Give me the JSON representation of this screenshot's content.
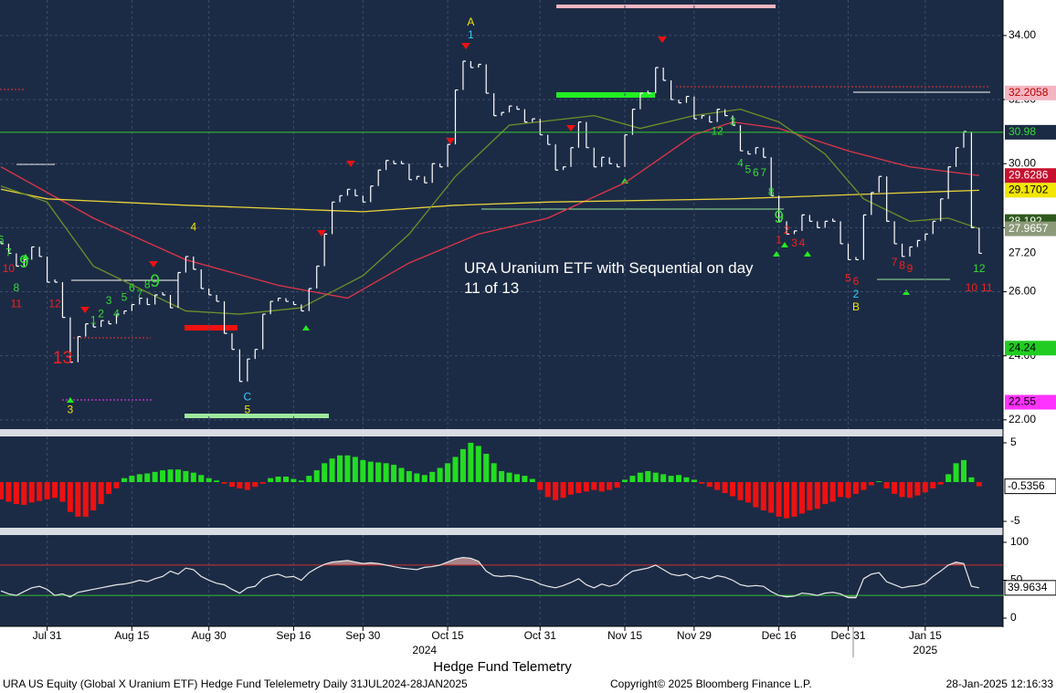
{
  "chart_data": [
    {
      "type": "ohlc",
      "title": "Hedge Fund Telemetry",
      "annotation": "URA Uranium ETF with Sequential on day 11 of 13",
      "color": "#ffffff",
      "close": [
        27.5,
        27.2,
        26.8,
        27.0,
        27.4,
        27.1,
        26.3,
        26.3,
        25.2,
        23.8,
        24.6,
        25.0,
        24.9,
        25.1,
        25.0,
        25.3,
        25.4,
        25.6,
        25.8,
        25.6,
        25.9,
        25.9,
        25.5,
        26.6,
        27.1,
        26.7,
        26.1,
        25.9,
        25.7,
        24.7,
        24.2,
        23.2,
        23.9,
        24.2,
        25.3,
        25.7,
        25.8,
        25.7,
        25.6,
        25.4,
        26.1,
        26.8,
        27.8,
        28.8,
        29.0,
        29.2,
        29.0,
        28.8,
        29.3,
        29.8,
        30.1,
        30.0,
        30.0,
        29.5,
        29.6,
        29.4,
        30.0,
        29.9,
        30.6,
        32.3,
        33.2,
        33.0,
        33.1,
        32.2,
        31.5,
        31.6,
        31.8,
        31.7,
        31.3,
        31.4,
        30.9,
        30.6,
        29.8,
        29.9,
        30.5,
        31.3,
        30.5,
        29.9,
        30.2,
        30.0,
        29.9,
        30.9,
        31.7,
        32.2,
        32.2,
        33.0,
        32.6,
        32.0,
        31.9,
        32.1,
        31.4,
        31.5,
        31.3,
        31.7,
        31.5,
        31.2,
        30.4,
        30.3,
        30.5,
        30.2,
        29.0,
        28.2,
        27.8,
        27.9,
        28.4,
        28.2,
        28.0,
        28.2,
        28.2,
        27.5,
        27.0,
        27.0,
        28.4,
        29.1,
        29.6,
        28.2,
        27.5,
        27.1,
        27.4,
        27.6,
        27.8,
        28.2,
        28.9,
        29.9,
        30.5,
        31.0,
        28.0,
        27.2
      ],
      "xlim": [
        -0.12,
        130.1
      ],
      "ylim": [
        21.71,
        35.11
      ],
      "yticks": [
        {
          "value": 22,
          "label": "22.00"
        },
        {
          "value": 24,
          "label": "24.00"
        },
        {
          "value": 26,
          "label": "26.00"
        },
        {
          "value": 28,
          "label": "28.00"
        },
        {
          "value": 30,
          "label": "30.00"
        },
        {
          "value": 32,
          "label": "32.00"
        },
        {
          "value": 34,
          "label": "34.00"
        }
      ],
      "xticks": [
        {
          "value": 6,
          "label": "Jul 31"
        },
        {
          "value": 17,
          "label": "Aug 15"
        },
        {
          "value": 27,
          "label": "Aug 30"
        },
        {
          "value": 38,
          "label": "Sep 16"
        },
        {
          "value": 47,
          "label": "Sep 30"
        },
        {
          "value": 58,
          "label": "Oct 15"
        },
        {
          "value": 70,
          "label": "Oct 31"
        },
        {
          "value": 81,
          "label": "Nov 15"
        },
        {
          "value": 90,
          "label": "Nov 29"
        },
        {
          "value": 101,
          "label": "Dec 16"
        },
        {
          "value": 110,
          "label": "Dec 31"
        },
        {
          "value": 120,
          "label": "Jan 15"
        }
      ],
      "years": [
        {
          "value": 55,
          "label": "2024"
        },
        {
          "value": 120,
          "label": "2025"
        }
      ],
      "grid": true,
      "moving_averages": [
        {
          "color": "#e0354a",
          "x": [
            0,
            12,
            24,
            36,
            45,
            53,
            62,
            71,
            81,
            90,
            95,
            101,
            110,
            118,
            127
          ],
          "values": [
            29.9,
            28.3,
            27.0,
            26.2,
            25.8,
            26.9,
            27.8,
            28.3,
            29.4,
            30.9,
            31.3,
            31.1,
            30.4,
            29.9,
            29.63
          ]
        },
        {
          "color": "#e8d23a",
          "x": [
            0,
            6,
            24,
            47,
            59,
            71,
            95,
            127
          ],
          "values": [
            29.2,
            28.9,
            28.7,
            28.5,
            28.7,
            28.8,
            28.9,
            29.17
          ]
        },
        {
          "color": "#6f8f2a",
          "x": [
            0,
            6,
            12,
            24,
            31,
            39,
            47,
            53,
            59,
            66,
            77,
            83,
            90,
            96,
            101,
            107,
            112,
            118,
            123,
            127
          ],
          "values": [
            29.3,
            28.8,
            26.8,
            25.4,
            25.3,
            25.5,
            26.5,
            27.8,
            29.6,
            31.2,
            31.5,
            31.1,
            31.5,
            31.7,
            31.3,
            30.3,
            28.9,
            28.2,
            28.3,
            27.97
          ]
        }
      ],
      "tags": [
        {
          "value": 32.2058,
          "color": "#f4b6c2",
          "text_color": "#c00000"
        },
        {
          "value": 30.98,
          "color": "#1c2b45",
          "text_color": "#33dd33",
          "line": true
        },
        {
          "value": 29.6286,
          "color": "#c8102e",
          "text_color": "#ffffff"
        },
        {
          "value": 29.1702,
          "color": "#f2e600",
          "text_color": "#000000"
        },
        {
          "value": 28.192,
          "color": "#2f5a1e",
          "text_color": "#ffffff"
        },
        {
          "value": 27.9657,
          "color": "#8c9a7a",
          "text_color": "#ffffff"
        },
        {
          "value": 27.2,
          "label": "27.20",
          "color": "#ffffff",
          "text_color": "#000000"
        },
        {
          "value": 24.24,
          "color": "#22cc22",
          "text_color": "#000000"
        },
        {
          "value": 22.55,
          "color": "#ff33ff",
          "text_color": "#000000"
        }
      ],
      "counts": [
        {
          "text": "6",
          "i": 0,
          "y": 27.6,
          "color": "#33dd33"
        },
        {
          "text": "7",
          "i": 1,
          "y": 27.2,
          "color": "#33dd33"
        },
        {
          "text": "9",
          "i": 3,
          "y": 26.9,
          "color": "#33dd33",
          "big": true
        },
        {
          "text": "8",
          "i": 2,
          "y": 26.1,
          "color": "#33dd33"
        },
        {
          "text": "10",
          "i": 1,
          "y": 26.7,
          "color": "#ee2222"
        },
        {
          "text": "11",
          "i": 2,
          "y": 25.6,
          "color": "#ee2222"
        },
        {
          "text": "12",
          "i": 7,
          "y": 25.6,
          "color": "#ee2222"
        },
        {
          "text": "13",
          "i": 8,
          "y": 23.9,
          "color": "#ee2222",
          "big": true
        },
        {
          "text": "3",
          "i": 9,
          "y": 22.3,
          "color": "#f2e600"
        },
        {
          "text": "1",
          "i": 12,
          "y": 25.1,
          "color": "#33dd33"
        },
        {
          "text": "2",
          "i": 13,
          "y": 25.3,
          "color": "#33dd33"
        },
        {
          "text": "3",
          "i": 14,
          "y": 25.7,
          "color": "#33dd33"
        },
        {
          "text": "4",
          "i": 15,
          "y": 25.3,
          "color": "#33dd33"
        },
        {
          "text": "5",
          "i": 16,
          "y": 25.8,
          "color": "#33dd33"
        },
        {
          "text": "6",
          "i": 17,
          "y": 26.1,
          "color": "#33dd33"
        },
        {
          "text": "7",
          "i": 18,
          "y": 25.9,
          "color": "#33dd33"
        },
        {
          "text": "8",
          "i": 19,
          "y": 26.2,
          "color": "#33dd33"
        },
        {
          "text": "9",
          "i": 20,
          "y": 26.3,
          "color": "#33dd33",
          "big": true
        },
        {
          "text": "4",
          "i": 25,
          "y": 28.0,
          "color": "#f2e600"
        },
        {
          "text": "C",
          "i": 32,
          "y": 22.7,
          "color": "#33ccff"
        },
        {
          "text": "5",
          "i": 32,
          "y": 22.3,
          "color": "#f2e600"
        },
        {
          "text": "A",
          "i": 61,
          "y": 34.4,
          "color": "#f2e600"
        },
        {
          "text": "1",
          "i": 61,
          "y": 34.0,
          "color": "#33ccff"
        },
        {
          "text": "12",
          "i": 93,
          "y": 31.0,
          "color": "#33dd33"
        },
        {
          "text": "3",
          "i": 95,
          "y": 31.3,
          "color": "#33dd33"
        },
        {
          "text": "4",
          "i": 96,
          "y": 30.0,
          "color": "#33dd33"
        },
        {
          "text": "5",
          "i": 97,
          "y": 29.8,
          "color": "#33dd33"
        },
        {
          "text": "6",
          "i": 98,
          "y": 29.7,
          "color": "#33dd33"
        },
        {
          "text": "7",
          "i": 99,
          "y": 29.7,
          "color": "#33dd33"
        },
        {
          "text": "8",
          "i": 100,
          "y": 29.1,
          "color": "#33dd33"
        },
        {
          "text": "9",
          "i": 101,
          "y": 28.3,
          "color": "#33dd33",
          "big": true
        },
        {
          "text": "1",
          "i": 101,
          "y": 27.6,
          "color": "#ee2222"
        },
        {
          "text": "2",
          "i": 102,
          "y": 27.9,
          "color": "#ee2222"
        },
        {
          "text": "3",
          "i": 103,
          "y": 27.5,
          "color": "#ee2222"
        },
        {
          "text": "4",
          "i": 104,
          "y": 27.5,
          "color": "#ee2222"
        },
        {
          "text": "5",
          "i": 110,
          "y": 26.4,
          "color": "#ee2222"
        },
        {
          "text": "6",
          "i": 111,
          "y": 26.3,
          "color": "#ee2222"
        },
        {
          "text": "2",
          "i": 111,
          "y": 25.9,
          "color": "#33ccff"
        },
        {
          "text": "B",
          "i": 111,
          "y": 25.5,
          "color": "#f2e600"
        },
        {
          "text": "7",
          "i": 116,
          "y": 26.9,
          "color": "#ee2222"
        },
        {
          "text": "8",
          "i": 117,
          "y": 26.8,
          "color": "#ee2222"
        },
        {
          "text": "9",
          "i": 118,
          "y": 26.7,
          "color": "#ee2222"
        },
        {
          "text": "12",
          "i": 127,
          "y": 26.7,
          "color": "#33dd33"
        },
        {
          "text": "10",
          "i": 126,
          "y": 26.1,
          "color": "#ee2222"
        },
        {
          "text": "11",
          "i": 128,
          "y": 26.1,
          "color": "#ee2222"
        }
      ]
    },
    {
      "type": "bar",
      "values": [
        -2.2,
        -2.5,
        -2.8,
        -2.9,
        -2.6,
        -2.4,
        -2.2,
        -2.0,
        -2.5,
        -3.8,
        -4.4,
        -4.4,
        -3.6,
        -2.8,
        -1.5,
        -0.8,
        0.5,
        0.8,
        1.0,
        1.1,
        1.3,
        1.5,
        1.6,
        1.6,
        1.4,
        1.2,
        0.9,
        0.5,
        0.2,
        -0.2,
        -0.6,
        -0.8,
        -1.0,
        -0.6,
        -0.2,
        0.5,
        0.7,
        0.7,
        0.4,
        0.2,
        0.8,
        1.5,
        2.4,
        3.0,
        3.4,
        3.4,
        3.2,
        2.8,
        2.6,
        2.5,
        2.4,
        2.2,
        1.8,
        1.4,
        1.1,
        0.9,
        1.3,
        1.8,
        2.4,
        3.2,
        4.2,
        5.0,
        4.6,
        3.6,
        2.4,
        1.4,
        1.2,
        1.0,
        0.8,
        0.4,
        -1.0,
        -1.9,
        -2.3,
        -2.0,
        -1.6,
        -1.4,
        -1.2,
        -1.0,
        -1.2,
        -1.0,
        -0.7,
        0.3,
        0.8,
        1.2,
        1.4,
        1.2,
        1.0,
        0.8,
        0.9,
        0.6,
        0.3,
        -0.2,
        -0.6,
        -1.0,
        -1.4,
        -1.8,
        -2.3,
        -2.6,
        -3.2,
        -3.6,
        -3.9,
        -4.4,
        -4.6,
        -4.4,
        -4.0,
        -3.6,
        -3.4,
        -2.8,
        -2.5,
        -1.9,
        -2.0,
        -1.5,
        -1.0,
        -0.4,
        0.1,
        -0.8,
        -1.5,
        -1.9,
        -2.0,
        -1.7,
        -1.3,
        -0.8,
        -0.3,
        1.0,
        2.4,
        2.8,
        0.6,
        -0.5356
      ],
      "positive_color": "#22dd22",
      "negative_color": "#ee1111",
      "ylim": [
        -5.81,
        5.81
      ],
      "yticks": [
        5,
        -5
      ]
    },
    {
      "type": "line",
      "color": "#e8e8e8",
      "values": [
        36,
        32,
        30,
        35,
        40,
        42,
        38,
        30,
        32,
        28,
        34,
        36,
        38,
        40,
        42,
        44,
        45,
        47,
        50,
        48,
        52,
        55,
        62,
        58,
        66,
        64,
        55,
        50,
        46,
        44,
        38,
        33,
        40,
        42,
        52,
        56,
        58,
        54,
        55,
        50,
        60,
        66,
        71,
        74,
        75,
        76,
        74,
        72,
        73,
        72,
        70,
        68,
        66,
        65,
        64,
        67,
        68,
        70,
        74,
        78,
        80,
        79,
        75,
        62,
        56,
        55,
        56,
        55,
        52,
        50,
        45,
        42,
        40,
        43,
        47,
        52,
        44,
        40,
        45,
        42,
        45,
        55,
        62,
        64,
        66,
        70,
        64,
        58,
        56,
        58,
        52,
        55,
        52,
        56,
        54,
        50,
        44,
        42,
        43,
        42,
        35,
        30,
        28,
        29,
        33,
        32,
        30,
        33,
        34,
        32,
        27,
        27,
        52,
        58,
        60,
        48,
        44,
        40,
        42,
        43,
        46,
        55,
        62,
        70,
        74,
        72,
        42,
        39.9634
      ],
      "ylim": [
        -10.8,
        109.6
      ],
      "yticks": [
        0,
        50,
        100
      ],
      "upper": 70,
      "lower": 30,
      "upper_color": "#d03030",
      "lower_color": "#30c030"
    }
  ],
  "footer": {
    "left": "URA US Equity (Global X Uranium ETF) Hedge Fund Telelemetry  Daily 31JUL2024-28JAN2025",
    "copyright": "Copyright© 2025 Bloomberg Finance L.P.",
    "timestamp": "28-Jan-2025 12:16:33"
  }
}
